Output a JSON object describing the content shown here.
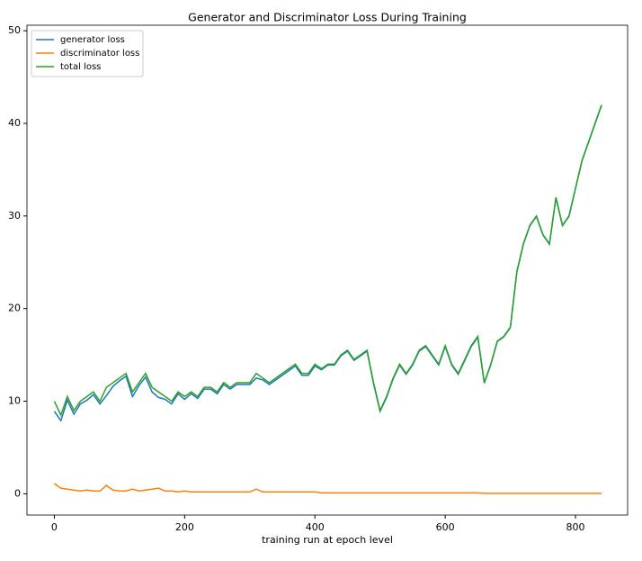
{
  "chart_data": {
    "type": "line",
    "title": "Generator and Discriminator Loss During Training",
    "x_label": "training run at epoch level",
    "x": [
      0,
      10,
      20,
      30,
      40,
      50,
      60,
      70,
      80,
      90,
      100,
      110,
      120,
      130,
      140,
      150,
      160,
      170,
      180,
      190,
      200,
      210,
      220,
      230,
      240,
      250,
      260,
      270,
      280,
      290,
      300,
      310,
      320,
      330,
      340,
      350,
      360,
      370,
      380,
      390,
      400,
      410,
      420,
      430,
      440,
      450,
      460,
      470,
      480,
      490,
      500,
      510,
      520,
      530,
      540,
      550,
      560,
      570,
      580,
      590,
      600,
      610,
      620,
      630,
      640,
      650,
      660,
      670,
      680,
      690,
      700,
      710,
      720,
      730,
      740,
      750,
      760,
      770,
      780,
      790,
      800,
      810,
      820,
      830,
      840
    ],
    "series": [
      {
        "name": "generator loss",
        "color": "#1f77b4",
        "values": [
          8.9,
          7.9,
          10.1,
          8.6,
          9.7,
          10.1,
          10.7,
          9.7,
          10.6,
          11.6,
          12.2,
          12.7,
          10.5,
          11.7,
          12.6,
          11,
          10.4,
          10.2,
          9.7,
          10.8,
          10.2,
          10.8,
          10.3,
          11.3,
          11.3,
          10.8,
          11.8,
          11.3,
          11.8,
          11.8,
          11.8,
          12.5,
          12.3,
          11.8,
          12.3,
          12.8,
          13.3,
          13.8,
          12.8,
          12.8,
          13.8,
          13.4,
          13.9,
          13.9,
          14.9,
          15.4,
          14.4,
          14.9,
          15.4,
          11.9,
          8.9,
          10.4,
          12.4,
          13.9,
          12.9,
          13.9,
          15.4,
          15.9,
          14.9,
          13.9,
          15.9,
          13.9,
          12.9,
          14.4,
          15.9,
          16.9,
          11.95,
          13.95,
          16.45,
          16.95,
          17.95,
          23.95,
          26.95,
          28.95,
          29.95,
          27.95,
          26.95,
          31.95,
          28.95,
          29.95,
          32.95,
          35.95,
          37.95,
          39.95,
          41.95
        ]
      },
      {
        "name": "discriminator loss",
        "color": "#ff7f0e",
        "values": [
          1.1,
          0.6,
          0.5,
          0.4,
          0.3,
          0.4,
          0.3,
          0.3,
          0.9,
          0.4,
          0.3,
          0.3,
          0.5,
          0.3,
          0.4,
          0.5,
          0.6,
          0.3,
          0.3,
          0.2,
          0.3,
          0.2,
          0.2,
          0.2,
          0.2,
          0.2,
          0.2,
          0.2,
          0.2,
          0.2,
          0.2,
          0.5,
          0.2,
          0.2,
          0.2,
          0.2,
          0.2,
          0.2,
          0.2,
          0.2,
          0.2,
          0.1,
          0.1,
          0.1,
          0.1,
          0.1,
          0.1,
          0.1,
          0.1,
          0.1,
          0.1,
          0.1,
          0.1,
          0.1,
          0.1,
          0.1,
          0.1,
          0.1,
          0.1,
          0.1,
          0.1,
          0.1,
          0.1,
          0.1,
          0.1,
          0.1,
          0.05,
          0.05,
          0.05,
          0.05,
          0.05,
          0.05,
          0.05,
          0.05,
          0.05,
          0.05,
          0.05,
          0.05,
          0.05,
          0.05,
          0.05,
          0.05,
          0.05,
          0.05,
          0.05
        ]
      },
      {
        "name": "total loss",
        "color": "#2ca02c",
        "values": [
          10,
          8.5,
          10.5,
          9,
          10,
          10.5,
          11,
          10,
          11.5,
          12,
          12.5,
          13,
          11,
          12,
          13,
          11.5,
          11,
          10.5,
          10,
          11,
          10.5,
          11,
          10.5,
          11.5,
          11.5,
          11,
          12,
          11.5,
          12,
          12,
          12,
          13,
          12.5,
          12,
          12.5,
          13,
          13.5,
          14,
          13,
          13,
          14,
          13.5,
          14,
          14,
          15,
          15.5,
          14.5,
          15,
          15.5,
          12,
          9,
          10.5,
          12.5,
          14,
          13,
          14,
          15.5,
          16,
          15,
          14,
          16,
          14,
          13,
          14.5,
          16,
          17,
          12,
          14,
          16.5,
          17,
          18,
          24,
          27,
          29,
          30,
          28,
          27,
          32,
          29,
          30,
          33,
          36,
          38,
          40,
          42
        ]
      }
    ],
    "xlim": [
      -42,
      880
    ],
    "ylim": [
      -2.3,
      50.6
    ],
    "xticks": [
      0,
      200,
      400,
      600,
      800
    ],
    "yticks": [
      0,
      10,
      20,
      30,
      40,
      50
    ],
    "legend": "upper left"
  }
}
